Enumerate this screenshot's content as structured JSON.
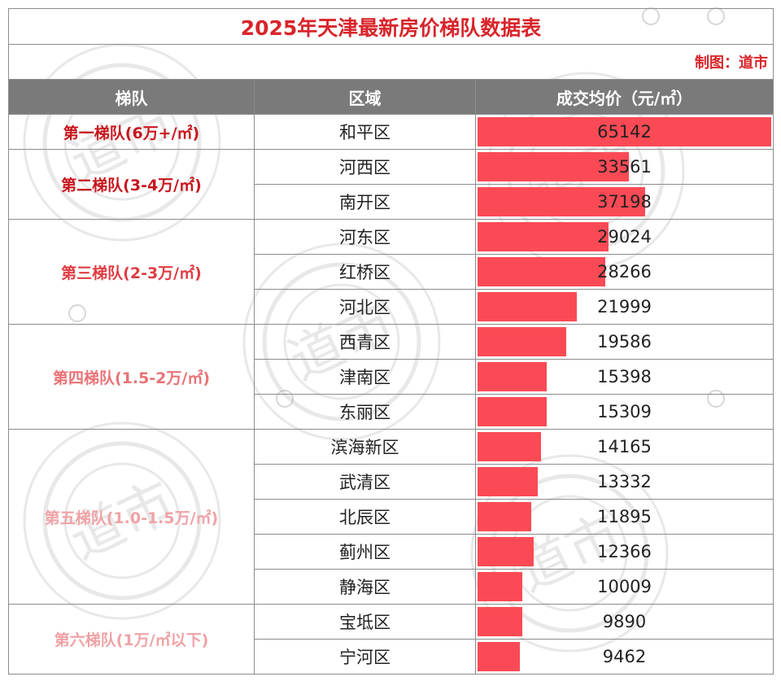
{
  "title": "2025年天津最新房价梯队数据表",
  "credit": "制图：道市",
  "watermark": "道市",
  "headers": {
    "tier": "梯队",
    "district": "区域",
    "price": "成交均价（元/㎡）"
  },
  "colors": {
    "title": "#d8252b",
    "header_bg": "#7a7a7a",
    "bar": "#fb4a55"
  },
  "tiers": [
    {
      "label": "第一梯队(6万+/㎡)",
      "color": "#c8161d",
      "rows": [
        {
          "district": "和平区",
          "price": 65142
        }
      ]
    },
    {
      "label": "第二梯队(3-4万/㎡)",
      "color": "#c8161d",
      "rows": [
        {
          "district": "河西区",
          "price": 33561
        },
        {
          "district": "南开区",
          "price": 37198
        }
      ]
    },
    {
      "label": "第三梯队(2-3万/㎡)",
      "color": "#e03c42",
      "rows": [
        {
          "district": "河东区",
          "price": 29024
        },
        {
          "district": "红桥区",
          "price": 28266
        },
        {
          "district": "河北区",
          "price": 21999
        }
      ]
    },
    {
      "label": "第四梯队(1.5-2万/㎡)",
      "color": "#ea7276",
      "rows": [
        {
          "district": "西青区",
          "price": 19586
        },
        {
          "district": "津南区",
          "price": 15398
        },
        {
          "district": "东丽区",
          "price": 15309
        }
      ]
    },
    {
      "label": "第五梯队(1.0-1.5万/㎡)",
      "color": "#f0a2a5",
      "rows": [
        {
          "district": "滨海新区",
          "price": 14165
        },
        {
          "district": "武清区",
          "price": 13332
        },
        {
          "district": "北辰区",
          "price": 11895
        },
        {
          "district": "蓟州区",
          "price": 12366
        },
        {
          "district": "静海区",
          "price": 10009
        }
      ]
    },
    {
      "label": "第六梯队(1万/㎡以下)",
      "color": "#f0a2a5",
      "rows": [
        {
          "district": "宝坻区",
          "price": 9890
        },
        {
          "district": "宁河区",
          "price": 9462
        }
      ]
    }
  ],
  "chart_data": {
    "type": "bar",
    "title": "2025年天津最新房价梯队数据表",
    "xlabel": "区域",
    "ylabel": "成交均价（元/㎡）",
    "categories": [
      "和平区",
      "河西区",
      "南开区",
      "河东区",
      "红桥区",
      "河北区",
      "西青区",
      "津南区",
      "东丽区",
      "滨海新区",
      "武清区",
      "北辰区",
      "蓟州区",
      "静海区",
      "宝坻区",
      "宁河区"
    ],
    "values": [
      65142,
      33561,
      37198,
      29024,
      28266,
      21999,
      19586,
      15398,
      15309,
      14165,
      13332,
      11895,
      12366,
      10009,
      9890,
      9462
    ],
    "ylim": [
      0,
      65142
    ],
    "orientation": "horizontal",
    "grid": false
  }
}
